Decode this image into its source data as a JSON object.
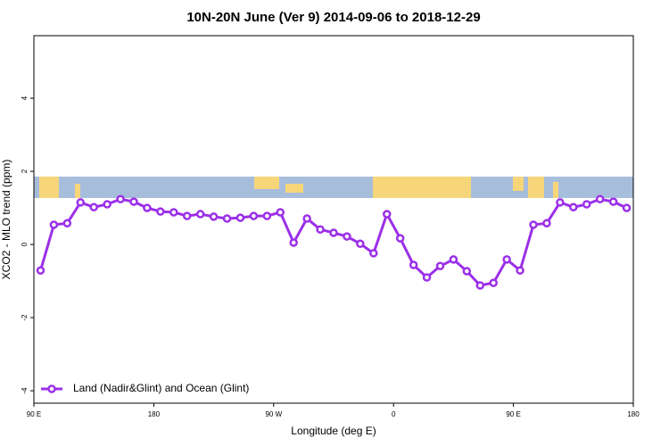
{
  "chart_data": {
    "type": "line",
    "title": "10N-20N June (Ver 9)   2014-09-06 to 2018-12-29",
    "x_label": "Longitude (deg E)",
    "y_label": "XCO2 - MLO trend (ppm)",
    "x": [
      95,
      105,
      115,
      125,
      135,
      145,
      155,
      165,
      175,
      185,
      195,
      205,
      215,
      225,
      235,
      245,
      255,
      265,
      275,
      285,
      295,
      305,
      315,
      325,
      335,
      345,
      355,
      365,
      375,
      385,
      395,
      405,
      415,
      425,
      435,
      445,
      455,
      465,
      475,
      485,
      495,
      505,
      515,
      525,
      535
    ],
    "series": [
      {
        "name": "Land (Nadir&Glint) and Ocean (Glint)",
        "color": "#9b30e8",
        "values": [
          -0.71,
          0.54,
          0.58,
          1.15,
          1.02,
          1.1,
          1.24,
          1.17,
          1.0,
          0.9,
          0.88,
          0.78,
          0.83,
          0.76,
          0.71,
          0.73,
          0.78,
          0.78,
          0.88,
          0.05,
          0.71,
          0.41,
          0.32,
          0.22,
          0.02,
          -0.24,
          0.83,
          0.17,
          -0.56,
          -0.9,
          -0.59,
          -0.41,
          -0.73,
          -1.12,
          -1.05,
          -0.41,
          -0.71,
          0.54,
          0.58,
          1.15,
          1.02,
          1.1,
          1.24,
          1.17,
          1.0
        ]
      }
    ],
    "xlim": [
      90,
      540
    ],
    "xticks": [
      {
        "value": 90,
        "label": "90 E"
      },
      180,
      {
        "value": 270,
        "label": "90 W"
      },
      {
        "value": 360,
        "label": "0"
      },
      {
        "value": 450,
        "label": "90 E"
      },
      {
        "value": 540,
        "label": "180"
      }
    ],
    "ylim": [
      -4.34,
      5.71
    ],
    "yticks": [
      -4,
      -2,
      0,
      2,
      4
    ],
    "legend": "bottomleft"
  }
}
